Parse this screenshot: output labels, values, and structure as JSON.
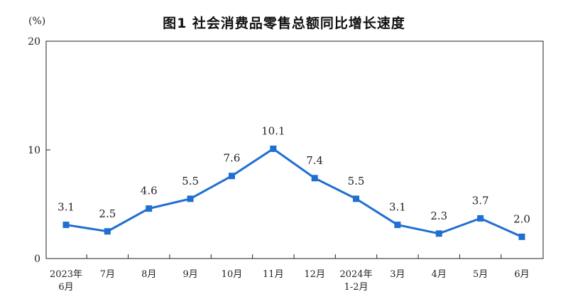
{
  "title": "图1  社会消费品零售总额同比增长速度",
  "unit_label": "(%)",
  "colors": {
    "series": "#1f6fd1",
    "axis": "#222222"
  },
  "chart_data": {
    "type": "line",
    "title": "图1  社会消费品零售总额同比增长速度",
    "ylabel": "(%)",
    "ylim": [
      0,
      20
    ],
    "yticks": [
      0,
      10,
      20
    ],
    "grid": false,
    "legend": "none",
    "categories": [
      [
        "2023年",
        "6月"
      ],
      [
        "7月"
      ],
      [
        "8月"
      ],
      [
        "9月"
      ],
      [
        "10月"
      ],
      [
        "11月"
      ],
      [
        "12月"
      ],
      [
        "2024年",
        "1-2月"
      ],
      [
        "3月"
      ],
      [
        "4月"
      ],
      [
        "5月"
      ],
      [
        "6月"
      ]
    ],
    "values": [
      3.1,
      2.5,
      4.6,
      5.5,
      7.6,
      10.1,
      7.4,
      5.5,
      3.1,
      2.3,
      3.7,
      2.0
    ],
    "data_labels": [
      "3.1",
      "2.5",
      "4.6",
      "5.5",
      "7.6",
      "10.1",
      "7.4",
      "5.5",
      "3.1",
      "2.3",
      "3.7",
      "2.0"
    ]
  }
}
